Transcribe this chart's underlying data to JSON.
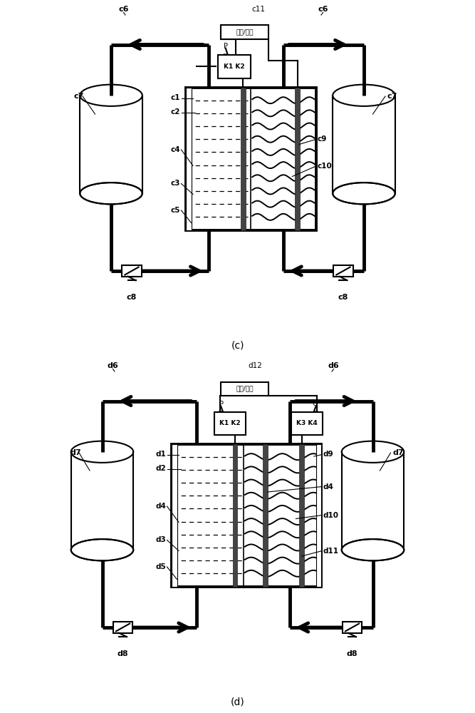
{
  "title_c": "(c)",
  "title_d": "(d)",
  "bias_label": "偏压/负载",
  "lw_thick": 3.5,
  "lw_thin": 1.5,
  "lw_mid": 2.0,
  "black": "#000000",
  "gray_dark": "#555555",
  "white": "#ffffff",
  "bg": "#ffffff"
}
